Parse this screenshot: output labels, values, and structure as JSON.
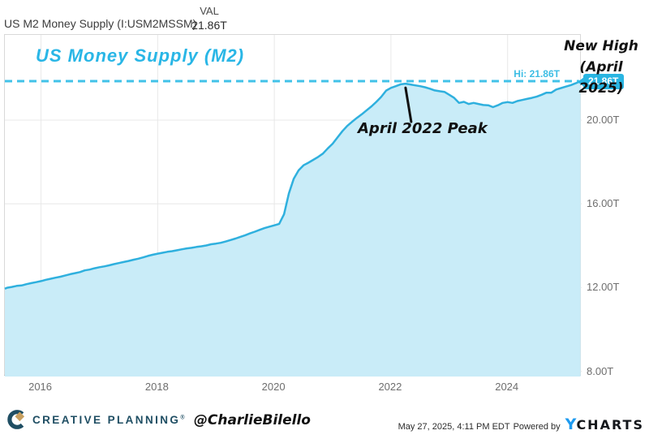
{
  "header": {
    "series_label": "US M2 Money Supply (I:USM2MSSM)",
    "val_label": "VAL",
    "val_value": "21.86T"
  },
  "chart_data": {
    "type": "area",
    "title": "US Money Supply (M2)",
    "series_name": "US M2 Money Supply",
    "x": [
      2015.333,
      2015.417,
      2015.5,
      2015.583,
      2015.667,
      2015.75,
      2015.833,
      2015.917,
      2016.0,
      2016.083,
      2016.167,
      2016.25,
      2016.333,
      2016.417,
      2016.5,
      2016.583,
      2016.667,
      2016.75,
      2016.833,
      2016.917,
      2017.0,
      2017.083,
      2017.167,
      2017.25,
      2017.333,
      2017.417,
      2017.5,
      2017.583,
      2017.667,
      2017.75,
      2017.833,
      2017.917,
      2018.0,
      2018.083,
      2018.167,
      2018.25,
      2018.333,
      2018.417,
      2018.5,
      2018.583,
      2018.667,
      2018.75,
      2018.833,
      2018.917,
      2019.0,
      2019.083,
      2019.167,
      2019.25,
      2019.333,
      2019.417,
      2019.5,
      2019.583,
      2019.667,
      2019.75,
      2019.833,
      2019.917,
      2020.0,
      2020.083,
      2020.167,
      2020.25,
      2020.333,
      2020.417,
      2020.5,
      2020.583,
      2020.667,
      2020.75,
      2020.833,
      2020.917,
      2021.0,
      2021.083,
      2021.167,
      2021.25,
      2021.333,
      2021.417,
      2021.5,
      2021.583,
      2021.667,
      2021.75,
      2021.833,
      2021.917,
      2022.0,
      2022.083,
      2022.167,
      2022.25,
      2022.333,
      2022.417,
      2022.5,
      2022.583,
      2022.667,
      2022.75,
      2022.833,
      2022.917,
      2023.0,
      2023.083,
      2023.167,
      2023.25,
      2023.333,
      2023.417,
      2023.5,
      2023.583,
      2023.667,
      2023.75,
      2023.833,
      2023.917,
      2024.0,
      2024.083,
      2024.167,
      2024.25,
      2024.333,
      2024.417,
      2024.5,
      2024.583,
      2024.667,
      2024.75,
      2024.833,
      2024.917,
      2025.0,
      2025.083,
      2025.167,
      2025.25
    ],
    "values": [
      11.94,
      11.99,
      12.03,
      12.08,
      12.1,
      12.16,
      12.21,
      12.26,
      12.31,
      12.37,
      12.42,
      12.47,
      12.52,
      12.58,
      12.64,
      12.69,
      12.74,
      12.82,
      12.86,
      12.92,
      12.97,
      13.01,
      13.06,
      13.12,
      13.17,
      13.22,
      13.27,
      13.33,
      13.38,
      13.44,
      13.51,
      13.57,
      13.62,
      13.66,
      13.71,
      13.74,
      13.78,
      13.83,
      13.87,
      13.9,
      13.94,
      13.97,
      14.01,
      14.07,
      14.1,
      14.14,
      14.2,
      14.27,
      14.34,
      14.42,
      14.5,
      14.59,
      14.67,
      14.76,
      14.84,
      14.91,
      14.97,
      15.04,
      15.5,
      16.5,
      17.2,
      17.6,
      17.84,
      17.96,
      18.1,
      18.24,
      18.4,
      18.65,
      18.87,
      19.17,
      19.47,
      19.72,
      19.92,
      20.11,
      20.28,
      20.47,
      20.66,
      20.87,
      21.11,
      21.41,
      21.54,
      21.62,
      21.71,
      21.74,
      21.7,
      21.66,
      21.62,
      21.57,
      21.5,
      21.42,
      21.38,
      21.35,
      21.21,
      21.06,
      20.82,
      20.87,
      20.77,
      20.82,
      20.77,
      20.72,
      20.71,
      20.62,
      20.71,
      20.82,
      20.86,
      20.82,
      20.91,
      20.96,
      21.01,
      21.06,
      21.12,
      21.21,
      21.31,
      21.31,
      21.46,
      21.53,
      21.6,
      21.67,
      21.76,
      21.86
    ],
    "xlim": [
      2015.38,
      2025.27
    ],
    "ylim": [
      7.75,
      24.07
    ],
    "x_ticks": [
      2016,
      2018,
      2020,
      2022,
      2024
    ],
    "x_tick_labels": [
      "2016",
      "2018",
      "2020",
      "2022",
      "2024"
    ],
    "y_ticks": [
      8,
      12,
      16,
      20
    ],
    "y_tick_labels": [
      "8.00T",
      "12.00T",
      "16.00T",
      "20.00T"
    ],
    "grid": true,
    "legend_position": "none",
    "hi_line": {
      "value": 21.86,
      "label": "Hi: 21.86T",
      "badge": "21.86T"
    },
    "annotations": {
      "new_high_line1": "New High",
      "new_high_line2": "(April 2025)",
      "peak_label": "April 2022 Peak",
      "peak_point": {
        "x": 2022.25,
        "value": 21.74
      }
    },
    "colors": {
      "line": "#2fb0de",
      "fill": "#c9ecf8",
      "title": "#29b6e6",
      "hi_line": "#41c2e8",
      "hi_label": "#3cbde4",
      "badge_bg": "#29b5e2",
      "badge_text": "#ffffff",
      "grid": "#e8e8e8",
      "annotation": "#111111"
    }
  },
  "footer": {
    "brand": "CREATIVE PLANNING",
    "brand_mark": "®",
    "handle": "@CharlieBilello",
    "timestamp": "May 27, 2025, 4:11 PM EDT",
    "powered_by": "Powered by",
    "ycharts_y": "Y",
    "ycharts_rest": "CHARTS"
  }
}
